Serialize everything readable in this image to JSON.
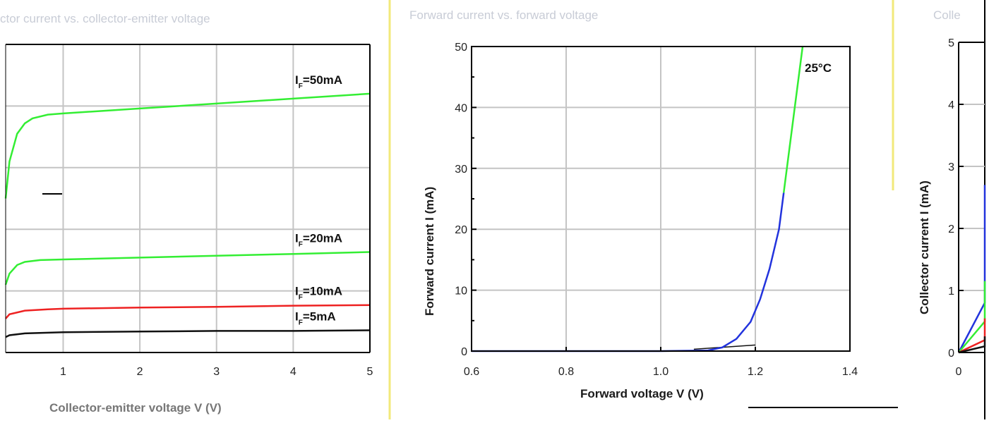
{
  "colors": {
    "green": "#33ee33",
    "red": "#ee2222",
    "black": "#111111",
    "blue": "#2233dd",
    "grid": "#c4c4c4",
    "title": "#c8ccd6"
  },
  "chart_data": [
    {
      "type": "line",
      "title": "ctor current vs. collector-emitter voltage",
      "xlabel": "Collector-emitter voltage V (V)",
      "ylabel": "",
      "xlim": [
        0.25,
        5
      ],
      "ylim": [
        0,
        5
      ],
      "x_ticks": [
        "1",
        "2",
        "3",
        "4",
        "5"
      ],
      "grid": true,
      "series": [
        {
          "name": "I=50mA",
          "label_main": "I",
          "label_sub": "F",
          "label_rest": "=50mA",
          "color": "#33ee33",
          "x": [
            0.25,
            0.3,
            0.4,
            0.5,
            0.6,
            0.8,
            1.0,
            2.0,
            3.0,
            4.0,
            5.0
          ],
          "y": [
            2.5,
            3.1,
            3.55,
            3.72,
            3.8,
            3.86,
            3.88,
            3.96,
            4.04,
            4.12,
            4.2
          ]
        },
        {
          "name": "I=20mA",
          "label_main": "I",
          "label_sub": "F",
          "label_rest": "=20mA",
          "color": "#33ee33",
          "x": [
            0.25,
            0.3,
            0.4,
            0.5,
            0.7,
            1.0,
            2.0,
            3.0,
            4.0,
            5.0
          ],
          "y": [
            1.1,
            1.28,
            1.42,
            1.47,
            1.5,
            1.51,
            1.54,
            1.57,
            1.6,
            1.63
          ]
        },
        {
          "name": "I=10mA",
          "label_main": "I",
          "label_sub": "F",
          "label_rest": "=10mA",
          "color": "#ee2222",
          "x": [
            0.25,
            0.3,
            0.5,
            0.8,
            1.0,
            2.0,
            3.0,
            4.0,
            5.0
          ],
          "y": [
            0.55,
            0.62,
            0.68,
            0.7,
            0.71,
            0.73,
            0.74,
            0.76,
            0.77
          ]
        },
        {
          "name": "I=5mA",
          "label_main": "I",
          "label_sub": "F",
          "label_rest": "=5mA",
          "color": "#111111",
          "x": [
            0.25,
            0.3,
            0.5,
            1.0,
            2.0,
            3.0,
            4.0,
            5.0
          ],
          "y": [
            0.25,
            0.28,
            0.31,
            0.33,
            0.34,
            0.35,
            0.35,
            0.36
          ]
        }
      ]
    },
    {
      "type": "line",
      "title": "Forward current vs. forward voltage",
      "xlabel": "Forward voltage V (V)",
      "ylabel": "Forward current I (mA)",
      "xlim": [
        0.6,
        1.4
      ],
      "ylim": [
        0,
        50
      ],
      "x_ticks": [
        "0.6",
        "0.8",
        "1.0",
        "1.2",
        "1.4"
      ],
      "y_ticks": [
        "0",
        "10",
        "20",
        "30",
        "40",
        "50"
      ],
      "annotation": "25°C",
      "grid": true,
      "series": [
        {
          "color": "#2233dd",
          "x": [
            0.6,
            1.0,
            1.1,
            1.13,
            1.16,
            1.19,
            1.21,
            1.23,
            1.25,
            1.26
          ],
          "y": [
            0,
            0,
            0.1,
            0.6,
            2.0,
            4.8,
            8.5,
            13.5,
            20,
            26
          ]
        },
        {
          "color": "#33ee33",
          "x": [
            1.26,
            1.27,
            1.28,
            1.29,
            1.3
          ],
          "y": [
            26,
            32,
            38,
            44,
            50
          ]
        }
      ]
    },
    {
      "type": "line",
      "title": "Colle",
      "xlabel": "",
      "ylabel": "Collector current I (mA)",
      "xlim": [
        0,
        0.25
      ],
      "ylim": [
        0,
        5
      ],
      "x_ticks": [
        "0"
      ],
      "y_ticks": [
        "0",
        "1",
        "2",
        "3",
        "4",
        "5"
      ],
      "grid": true,
      "series": [
        {
          "color": "#2233dd",
          "x": [
            0,
            0.03,
            0.06,
            0.09
          ],
          "y": [
            0,
            0.8,
            1.8,
            2.7
          ]
        },
        {
          "color": "#33ee33",
          "x": [
            0,
            0.04,
            0.08,
            0.09
          ],
          "y": [
            0,
            0.5,
            1.0,
            1.15
          ]
        },
        {
          "color": "#ee2222",
          "x": [
            0,
            0.04,
            0.08,
            0.09
          ],
          "y": [
            0,
            0.2,
            0.45,
            0.55
          ]
        },
        {
          "color": "#111111",
          "x": [
            0,
            0.04,
            0.08,
            0.09
          ],
          "y": [
            0,
            0.1,
            0.22,
            0.26
          ]
        }
      ]
    }
  ]
}
